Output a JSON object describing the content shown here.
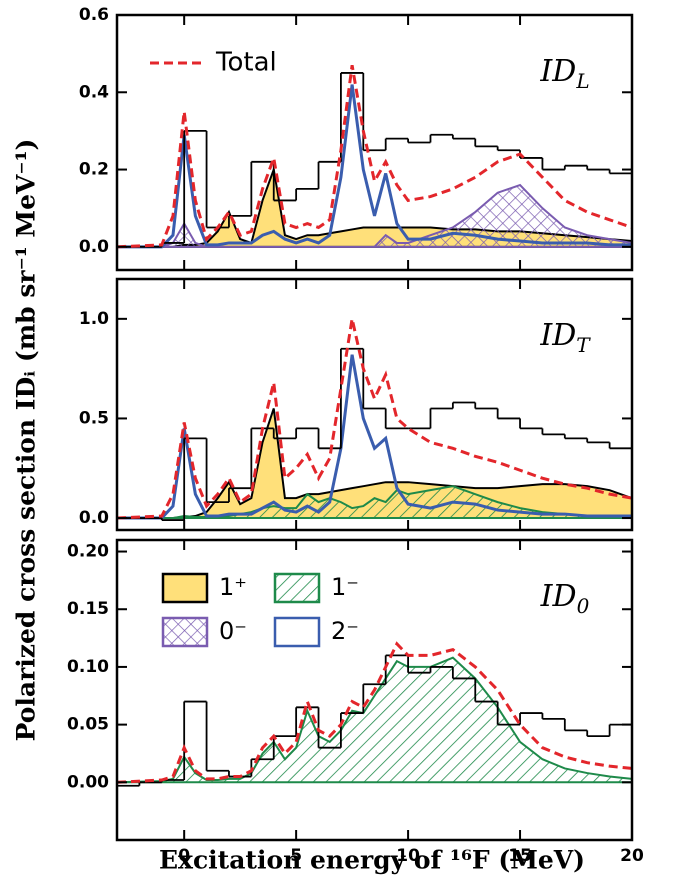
{
  "figure": {
    "xlabel": "Excitation energy of ¹⁶F (MeV)",
    "ylabel": "Polarized cross section IDᵢ (mb sr⁻¹ MeV⁻¹)"
  },
  "chart_data": [
    {
      "type": "line",
      "label": "ID",
      "label_sub": "L",
      "xlim": [
        -3,
        20
      ],
      "xticks": [
        0,
        5,
        10,
        15,
        20
      ],
      "ylim": [
        -0.06,
        0.6
      ],
      "yticks": [
        {
          "value": 0,
          "label": "0.0"
        },
        0.2,
        0.4,
        0.6
      ],
      "x": [
        -3,
        -1,
        -0.5,
        0,
        0.5,
        1,
        1.5,
        2,
        2.5,
        3,
        3.5,
        4,
        4.5,
        5,
        5.5,
        6,
        6.5,
        7,
        7.5,
        8,
        8.5,
        9,
        9.5,
        10,
        11,
        12,
        13,
        14,
        15,
        16,
        17,
        18,
        19,
        20
      ],
      "series": [
        {
          "name": "Total",
          "color": "#e3262b",
          "style": "dashed",
          "values": [
            0,
            0.005,
            0.08,
            0.35,
            0.12,
            0.02,
            0.05,
            0.09,
            0.03,
            0.04,
            0.15,
            0.23,
            0.06,
            0.05,
            0.06,
            0.05,
            0.07,
            0.25,
            0.47,
            0.3,
            0.17,
            0.22,
            0.16,
            0.12,
            0.13,
            0.15,
            0.18,
            0.22,
            0.24,
            0.18,
            0.12,
            0.09,
            0.07,
            0.05
          ]
        },
        {
          "name": "1⁺",
          "color": "#ffe07a",
          "style": "filled",
          "values": [
            0,
            0,
            0,
            0.005,
            0.005,
            0.01,
            0.04,
            0.09,
            0.02,
            0.01,
            0.12,
            0.2,
            0.03,
            0.02,
            0.03,
            0.03,
            0.035,
            0.04,
            0.045,
            0.05,
            0.05,
            0.05,
            0.05,
            0.05,
            0.05,
            0.045,
            0.045,
            0.04,
            0.04,
            0.035,
            0.03,
            0.025,
            0.02,
            0.015
          ]
        },
        {
          "name": "0⁻",
          "color": "#7a5cb0",
          "style": "crosshatch",
          "values": [
            0,
            0,
            0.01,
            0.06,
            0.01,
            0,
            0,
            0,
            0,
            0,
            0,
            0,
            0,
            0,
            0,
            0,
            0,
            0,
            0,
            0,
            0,
            0.03,
            0.01,
            0.01,
            0.03,
            0.05,
            0.09,
            0.14,
            0.16,
            0.1,
            0.05,
            0.03,
            0.02,
            0.01
          ]
        },
        {
          "name": "2⁻",
          "color": "#3a5dae",
          "style": "solid",
          "values": [
            0,
            0,
            0.03,
            0.29,
            0.08,
            0.005,
            0.005,
            0.01,
            0.01,
            0.01,
            0.03,
            0.04,
            0.02,
            0.01,
            0.02,
            0.01,
            0.03,
            0.18,
            0.42,
            0.2,
            0.08,
            0.19,
            0.06,
            0.02,
            0.02,
            0.035,
            0.03,
            0.02,
            0.015,
            0.01,
            0.01,
            0.01,
            0.005,
            0.005
          ]
        }
      ],
      "histogram": {
        "color": "#000000",
        "bins": [
          -3,
          -2,
          -1,
          0,
          1,
          2,
          3,
          4,
          5,
          6,
          7,
          8,
          9,
          10,
          11,
          12,
          13,
          14,
          15,
          16,
          17,
          18,
          19,
          20
        ],
        "values": [
          0,
          0,
          0.01,
          0.3,
          0.05,
          0.08,
          0.22,
          0.12,
          0.15,
          0.22,
          0.45,
          0.25,
          0.28,
          0.27,
          0.29,
          0.28,
          0.26,
          0.25,
          0.23,
          0.2,
          0.21,
          0.2,
          0.19
        ]
      }
    },
    {
      "type": "line",
      "label": "ID",
      "label_sub": "T",
      "xlim": [
        -3,
        20
      ],
      "xticks": [
        0,
        5,
        10,
        15,
        20
      ],
      "ylim": [
        -0.06,
        1.2
      ],
      "yticks": [
        {
          "value": 0,
          "label": "0.0"
        },
        0.5,
        {
          "value": 1,
          "label": "1.0"
        }
      ],
      "x": [
        -3,
        -1,
        -0.5,
        0,
        0.5,
        1,
        1.5,
        2,
        2.5,
        3,
        3.5,
        4,
        4.5,
        5,
        5.5,
        6,
        6.5,
        7,
        7.5,
        8,
        8.5,
        9,
        9.5,
        10,
        11,
        12,
        13,
        14,
        15,
        16,
        17,
        18,
        19,
        20
      ],
      "series": [
        {
          "color": "#e3262b",
          "style": "dashed",
          "values": [
            0,
            0.01,
            0.12,
            0.48,
            0.2,
            0.06,
            0.12,
            0.2,
            0.08,
            0.12,
            0.45,
            0.68,
            0.2,
            0.25,
            0.32,
            0.2,
            0.3,
            0.65,
            1.0,
            0.75,
            0.6,
            0.72,
            0.5,
            0.45,
            0.38,
            0.35,
            0.31,
            0.28,
            0.24,
            0.2,
            0.17,
            0.15,
            0.12,
            0.1
          ]
        },
        {
          "color": "#ffe07a",
          "style": "filled",
          "values": [
            0,
            0,
            0,
            0.005,
            0.01,
            0.03,
            0.1,
            0.18,
            0.07,
            0.1,
            0.38,
            0.55,
            0.1,
            0.1,
            0.12,
            0.12,
            0.13,
            0.14,
            0.15,
            0.16,
            0.17,
            0.18,
            0.18,
            0.18,
            0.17,
            0.16,
            0.15,
            0.15,
            0.16,
            0.17,
            0.17,
            0.16,
            0.14,
            0.1
          ]
        },
        {
          "name": "1⁻",
          "color": "#1e8a4a",
          "style": "hatch",
          "values": [
            0,
            0,
            0,
            0.01,
            0.005,
            0.005,
            0.01,
            0.01,
            0.02,
            0.03,
            0.05,
            0.06,
            0.05,
            0.05,
            0.12,
            0.08,
            0.1,
            0.08,
            0.05,
            0.06,
            0.1,
            0.08,
            0.14,
            0.12,
            0.14,
            0.16,
            0.12,
            0.08,
            0.05,
            0.03,
            0.02,
            0.01,
            0.01,
            0.005
          ]
        },
        {
          "color": "#3a5dae",
          "style": "solid",
          "values": [
            0,
            0,
            0.06,
            0.45,
            0.12,
            0.01,
            0.01,
            0.02,
            0.02,
            0.02,
            0.05,
            0.08,
            0.04,
            0.03,
            0.06,
            0.03,
            0.08,
            0.35,
            0.82,
            0.5,
            0.35,
            0.4,
            0.15,
            0.07,
            0.05,
            0.08,
            0.07,
            0.04,
            0.03,
            0.02,
            0.02,
            0.01,
            0.01,
            0.01
          ]
        }
      ],
      "histogram": {
        "color": "#000000",
        "bins": [
          -3,
          -2,
          -1,
          0,
          1,
          2,
          3,
          4,
          5,
          6,
          7,
          8,
          9,
          10,
          11,
          12,
          13,
          14,
          15,
          16,
          17,
          18,
          19,
          20
        ],
        "values": [
          0,
          0,
          -0.01,
          0.4,
          0.08,
          0.15,
          0.45,
          0.4,
          0.45,
          0.35,
          0.85,
          0.55,
          0.45,
          0.45,
          0.55,
          0.58,
          0.55,
          0.5,
          0.45,
          0.42,
          0.4,
          0.38,
          0.35
        ]
      }
    },
    {
      "type": "line",
      "label": "ID",
      "label_sub": "0",
      "xlim": [
        -3,
        20
      ],
      "xticks": [
        0,
        5,
        10,
        15,
        20
      ],
      "ylim": [
        -0.05,
        0.21
      ],
      "yticks": [
        {
          "value": 0,
          "label": "0.00"
        },
        0.05,
        {
          "value": 0.1,
          "label": "0.10"
        },
        0.15,
        {
          "value": 0.2,
          "label": "0.20"
        }
      ],
      "x": [
        -3,
        -1,
        -0.5,
        0,
        0.5,
        1,
        1.5,
        2,
        2.5,
        3,
        3.5,
        4,
        4.5,
        5,
        5.5,
        6,
        6.5,
        7,
        7.5,
        8,
        8.5,
        9,
        9.5,
        10,
        11,
        12,
        13,
        14,
        15,
        16,
        17,
        18,
        19,
        20
      ],
      "series": [
        {
          "color": "#e3262b",
          "style": "dashed",
          "values": [
            0,
            0.002,
            0.005,
            0.03,
            0.01,
            0.003,
            0.003,
            0.005,
            0.005,
            0.01,
            0.03,
            0.04,
            0.025,
            0.035,
            0.07,
            0.045,
            0.04,
            0.05,
            0.07,
            0.065,
            0.08,
            0.1,
            0.12,
            0.11,
            0.11,
            0.115,
            0.1,
            0.08,
            0.05,
            0.03,
            0.022,
            0.017,
            0.014,
            0.012
          ]
        },
        {
          "color": "#1e8a4a",
          "style": "hatch",
          "values": [
            0,
            0.001,
            0.003,
            0.022,
            0.008,
            0.002,
            0.002,
            0.003,
            0.003,
            0.008,
            0.025,
            0.035,
            0.02,
            0.03,
            0.062,
            0.04,
            0.035,
            0.045,
            0.062,
            0.06,
            0.075,
            0.09,
            0.105,
            0.1,
            0.1,
            0.108,
            0.09,
            0.065,
            0.035,
            0.02,
            0.012,
            0.008,
            0.005,
            0.003
          ]
        }
      ],
      "histogram": {
        "color": "#000000",
        "bins": [
          -3,
          -2,
          -1,
          0,
          1,
          2,
          3,
          4,
          5,
          6,
          7,
          8,
          9,
          10,
          11,
          12,
          13,
          14,
          15,
          16,
          17,
          18,
          19,
          20
        ],
        "values": [
          -0.003,
          0,
          0.002,
          0.07,
          0.01,
          0.005,
          0.02,
          0.04,
          0.065,
          0.03,
          0.06,
          0.085,
          0.11,
          0.095,
          0.1,
          0.09,
          0.07,
          0.05,
          0.06,
          0.055,
          0.045,
          0.04,
          0.05
        ]
      }
    }
  ]
}
